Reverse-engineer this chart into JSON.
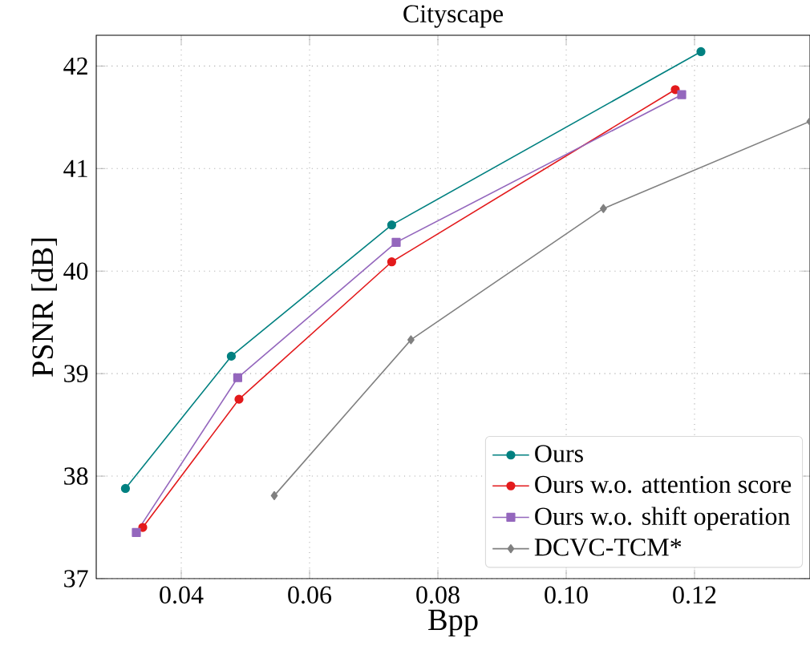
{
  "chart_data": {
    "type": "line",
    "title": "Cityscape",
    "xlabel": "Bpp",
    "ylabel": "PSNR [dB]",
    "xlim": [
      0.02675,
      0.138
    ],
    "ylim": [
      37,
      42.3
    ],
    "xticks": [
      {
        "value": 0.04,
        "label": "0.04"
      },
      {
        "value": 0.06,
        "label": "0.06"
      },
      {
        "value": 0.08,
        "label": "0.08"
      },
      {
        "value": 0.1,
        "label": "0.10"
      },
      {
        "value": 0.12,
        "label": "0.12"
      }
    ],
    "yticks": [
      37,
      38,
      39,
      40,
      41,
      42
    ],
    "grid": true,
    "legend": "bottom right",
    "series": [
      {
        "name": "Ours",
        "color": "#008080",
        "marker": "circle",
        "x": [
          0.0313,
          0.0478,
          0.0728,
          0.121
        ],
        "values": [
          37.88,
          39.17,
          40.45,
          42.14
        ]
      },
      {
        "name": "Ours w.o. attention score",
        "color": "#e31a1c",
        "marker": "circle",
        "x": [
          0.034,
          0.049,
          0.0728,
          0.117
        ],
        "values": [
          37.5,
          38.75,
          40.09,
          41.77
        ]
      },
      {
        "name": "Ours w.o. shift operation",
        "color": "#9467bd",
        "marker": "square",
        "x": [
          0.033,
          0.0488,
          0.0735,
          0.118
        ],
        "values": [
          37.45,
          38.96,
          40.28,
          41.72
        ]
      },
      {
        "name": "DCVC-TCM*",
        "color": "#808080",
        "marker": "diamond",
        "x": [
          0.0545,
          0.0758,
          0.1058,
          0.138
        ],
        "values": [
          37.81,
          39.33,
          40.61,
          41.46
        ]
      }
    ]
  }
}
